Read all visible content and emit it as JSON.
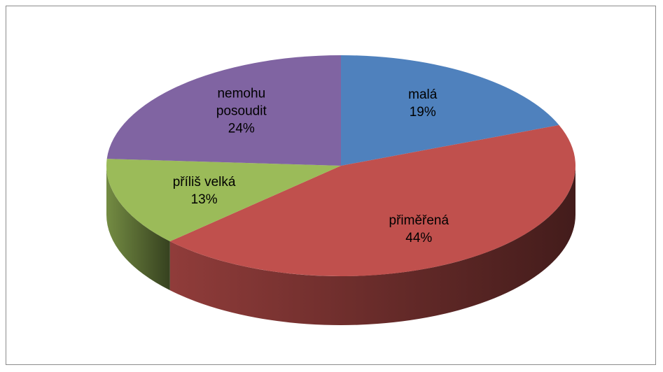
{
  "chart_data": {
    "type": "pie3d",
    "categories": [
      "malá",
      "přiměřená",
      "příliš velká",
      "nemohu posoudit"
    ],
    "values": [
      19,
      44,
      13,
      24
    ],
    "value_labels": [
      "19%",
      "44%",
      "13%",
      "24%"
    ],
    "colors": [
      "#4f81bd",
      "#c0504d",
      "#9bbb59",
      "#8064a2"
    ]
  }
}
